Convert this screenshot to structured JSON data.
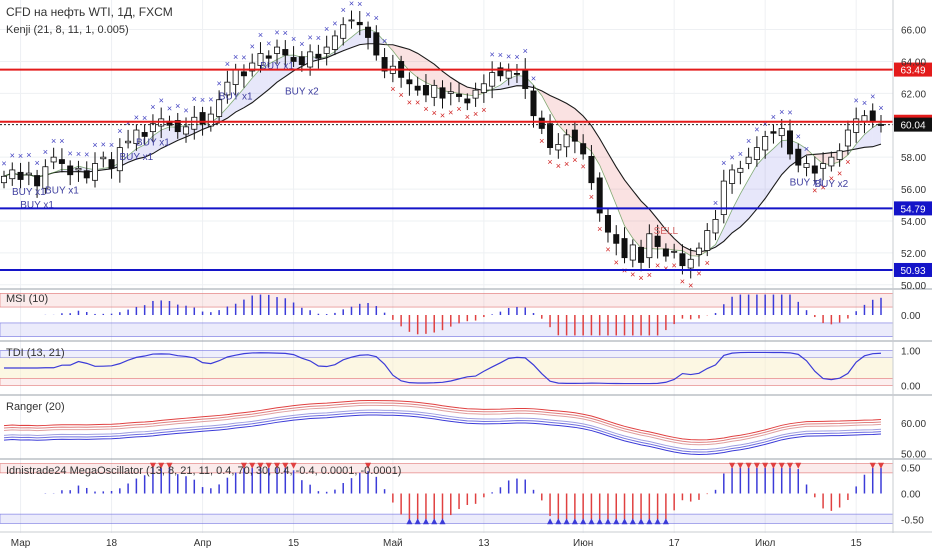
{
  "chart_data": {
    "type": "candlestick",
    "header": {
      "title": "CFD на нефть WTI, 1Д, FXCM",
      "indicator": "Kenji (21, 8, 11, 1, 0.005)"
    },
    "x_labels": [
      "Мар",
      "18",
      "Апр",
      "15",
      "Май",
      "13",
      "Июн",
      "17",
      "Июл",
      "15"
    ],
    "x_label_index": [
      2,
      13,
      24,
      35,
      47,
      58,
      70,
      81,
      92,
      103
    ],
    "price_axis": {
      "ticks": [
        "66.00",
        "64.00",
        "62.00",
        "58.00",
        "56.00",
        "54.00",
        "52.00",
        "50.00"
      ],
      "tick_values": [
        66,
        64,
        62,
        58,
        56,
        54,
        52,
        50
      ],
      "range": [
        49.8,
        67.6
      ]
    },
    "price_lines": [
      {
        "value": 63.49,
        "label": "63.49",
        "color": "#e31b1b"
      },
      {
        "value": 60.22,
        "label": "60.22",
        "color": "#e31b1b"
      },
      {
        "value": 54.79,
        "label": "54.79",
        "color": "#1414c8"
      },
      {
        "value": 50.93,
        "label": "50.93",
        "color": "#1414c8"
      }
    ],
    "last_price": {
      "value": 60.04,
      "label": "60.04"
    },
    "close": [
      56.8,
      57.2,
      56.6,
      57.0,
      56.2,
      57.4,
      58.0,
      57.6,
      56.9,
      57.3,
      56.7,
      57.6,
      58.0,
      57.3,
      58.6,
      59.0,
      59.7,
      59.3,
      60.1,
      60.4,
      60.0,
      59.6,
      59.9,
      60.5,
      60.1,
      60.7,
      61.6,
      62.7,
      63.5,
      63.1,
      63.9,
      64.5,
      64.2,
      64.9,
      64.4,
      64.0,
      63.8,
      64.6,
      64.2,
      64.9,
      65.6,
      66.3,
      66.6,
      66.3,
      65.5,
      64.4,
      63.4,
      63.7,
      63.0,
      62.6,
      62.2,
      61.9,
      62.5,
      61.7,
      62.1,
      61.8,
      61.4,
      62.2,
      62.6,
      63.3,
      63.1,
      63.4,
      63.2,
      62.3,
      60.6,
      59.8,
      58.6,
      58.8,
      59.4,
      59.0,
      58.2,
      56.4,
      54.5,
      53.3,
      52.6,
      51.7,
      52.5,
      51.4,
      53.2,
      52.4,
      51.8,
      52.1,
      51.2,
      51.6,
      52.3,
      53.4,
      54.1,
      56.5,
      57.2,
      57.3,
      58.0,
      58.6,
      59.3,
      59.5,
      59.8,
      58.2,
      57.5,
      57.6,
      57.0,
      57.6,
      58.0,
      58.4,
      59.7,
      60.4,
      60.6,
      60.2,
      60.0
    ],
    "series": [
      {
        "name": "MSI",
        "label": "MSI (10)",
        "ticks": [
          "0.00"
        ],
        "tick_values": [
          0
        ],
        "range": [
          -1.1,
          1.1
        ]
      },
      {
        "name": "TDI",
        "label": "TDI (13, 21)",
        "ticks": [
          "1.00",
          "0.00"
        ],
        "tick_values": [
          1,
          0
        ],
        "range": [
          -0.25,
          1.25
        ]
      },
      {
        "name": "Ranger",
        "label": "Ranger (20)",
        "ticks": [
          "60.00",
          "50.00"
        ],
        "tick_values": [
          60,
          50
        ],
        "range": [
          48.5,
          69
        ]
      },
      {
        "name": "MegaOscillator",
        "label": "Idnistrade24 MegaOscillator (13, 8, 21, 11, 0.4, 70, 30, 0.4, -0.4, 0.0001, -0.0001)",
        "ticks": [
          "0.50",
          "0.00",
          "-0.50"
        ],
        "tick_values": [
          0.5,
          0,
          -0.5
        ],
        "range": [
          -0.65,
          0.65
        ]
      }
    ],
    "signals": {
      "buy": [
        {
          "i": 4,
          "text": "BUY x1"
        },
        {
          "i": 7,
          "text": "BUY x1"
        },
        {
          "i": 3,
          "text": "BUY x1"
        },
        {
          "i": 16,
          "text": "BUY x1"
        },
        {
          "i": 18,
          "text": "BUY x1"
        },
        {
          "i": 28,
          "text": "BUY x1"
        },
        {
          "i": 33,
          "text": "BUY x1"
        },
        {
          "i": 36,
          "text": "BUY x2"
        },
        {
          "i": 97,
          "text": "BUY x1"
        },
        {
          "i": 100,
          "text": "BUY x2"
        }
      ],
      "sell": [
        {
          "i": 80,
          "text": "SELL"
        }
      ]
    },
    "grid": true
  }
}
